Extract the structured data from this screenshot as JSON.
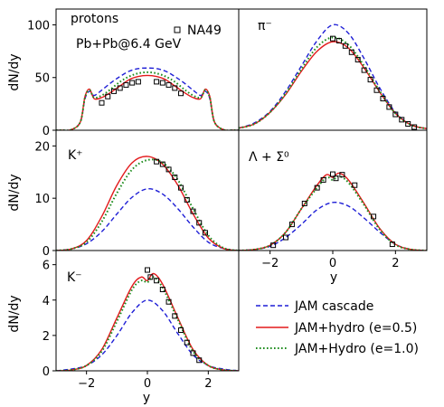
{
  "figure": {
    "legend": [
      {
        "series": "jam",
        "label": "JAM cascade"
      },
      {
        "series": "hydro05",
        "label": "JAM+hydro (e=0.5)"
      },
      {
        "series": "hydro10",
        "label": "JAM+Hydro (e=1.0)"
      }
    ],
    "series_styles": {
      "jam": {
        "color": "#1f1fd6",
        "dash": "5,3",
        "width": 1.4
      },
      "hydro05": {
        "color": "#e31a1c",
        "dash": "",
        "width": 1.4
      },
      "hydro10": {
        "color": "#1e8c1e",
        "dash": "1.6,2.4",
        "width": 2.0
      }
    },
    "marker_style": {
      "stroke": "#000000",
      "fill": "none"
    }
  },
  "chart_data": [
    {
      "type": "line",
      "panel": "protons",
      "label": "protons",
      "sublabel": "Pb+Pb@6.4 GeV",
      "data_label": "NA49",
      "xlabel": "",
      "ylabel": "dN/dy",
      "xlim": [
        -3,
        3
      ],
      "ylim": [
        0,
        115
      ],
      "yticks": [
        "0",
        "50",
        "100"
      ],
      "xticks": [],
      "series": [
        {
          "key": "jam",
          "x": [
            -3,
            -2.8,
            -2.5,
            -2.2,
            -2.05,
            -1.9,
            -1.75,
            -1.5,
            -1.2,
            -0.9,
            -0.6,
            -0.3,
            0,
            0.3,
            0.6,
            0.9,
            1.2,
            1.5,
            1.75,
            1.9,
            2.05,
            2.2,
            2.5,
            2.8,
            3
          ],
          "y": [
            0,
            0,
            0.5,
            8,
            30,
            37,
            33,
            38,
            45,
            51,
            56,
            58.5,
            59,
            58.5,
            56,
            51,
            45,
            38,
            33,
            37,
            30,
            8,
            0.5,
            0,
            0
          ]
        },
        {
          "key": "hydro05",
          "x": [
            -3,
            -2.8,
            -2.5,
            -2.2,
            -2.05,
            -1.9,
            -1.75,
            -1.5,
            -1.2,
            -0.9,
            -0.6,
            -0.3,
            0,
            0.3,
            0.6,
            0.9,
            1.2,
            1.5,
            1.75,
            1.9,
            2.05,
            2.2,
            2.5,
            2.8,
            3
          ],
          "y": [
            0,
            0,
            0.5,
            8,
            32,
            39,
            30,
            31,
            36,
            42,
            48,
            51,
            52,
            51,
            48,
            42,
            36,
            31,
            30,
            39,
            32,
            8,
            0.5,
            0,
            0
          ]
        },
        {
          "key": "hydro10",
          "x": [
            -3,
            -2.8,
            -2.5,
            -2.2,
            -2.05,
            -1.9,
            -1.75,
            -1.5,
            -1.2,
            -0.9,
            -0.6,
            -0.3,
            0,
            0.3,
            0.6,
            0.9,
            1.2,
            1.5,
            1.75,
            1.9,
            2.05,
            2.2,
            2.5,
            2.8,
            3
          ],
          "y": [
            0,
            0,
            0.5,
            8,
            31,
            38,
            31,
            33,
            39,
            46,
            51,
            54,
            55,
            54,
            51,
            46,
            39,
            33,
            31,
            38,
            31,
            8,
            0.5,
            0,
            0
          ]
        }
      ],
      "points": {
        "x": [
          -1.5,
          -1.3,
          -1.1,
          -0.9,
          -0.7,
          -0.5,
          -0.3,
          0.3,
          0.5,
          0.7,
          0.9,
          1.1
        ],
        "y": [
          26,
          32,
          37,
          40,
          43,
          45,
          46,
          46,
          45,
          43,
          40,
          35
        ]
      }
    },
    {
      "type": "line",
      "panel": "pi-minus",
      "label": "π⁻",
      "xlabel": "",
      "ylabel": "",
      "xlim": [
        -3,
        3
      ],
      "ylim": [
        0,
        115
      ],
      "yticks": [],
      "xticks": [],
      "series": [
        {
          "key": "jam",
          "x": [
            -3,
            -2.5,
            -2,
            -1.5,
            -1,
            -0.5,
            0,
            0.5,
            1,
            1.5,
            2,
            2.5,
            3
          ],
          "y": [
            2,
            7,
            18,
            37,
            61,
            85,
            100,
            92,
            68,
            40,
            17,
            5,
            1.5
          ]
        },
        {
          "key": "hydro05",
          "x": [
            -3,
            -2.5,
            -2,
            -1.5,
            -1,
            -0.5,
            0,
            0.5,
            1,
            1.5,
            2,
            2.5,
            3
          ],
          "y": [
            2,
            6,
            17,
            34,
            56,
            75,
            84,
            78,
            59,
            36,
            16,
            5,
            1.5
          ]
        },
        {
          "key": "hydro10",
          "x": [
            -3,
            -2.5,
            -2,
            -1.5,
            -1,
            -0.5,
            0,
            0.5,
            1,
            1.5,
            2,
            2.5,
            3
          ],
          "y": [
            2,
            6,
            17,
            35,
            58,
            79,
            88,
            81,
            61,
            37,
            16,
            5,
            1.5
          ]
        }
      ],
      "points": {
        "x": [
          0,
          0.2,
          0.4,
          0.6,
          0.8,
          1.0,
          1.2,
          1.4,
          1.6,
          1.8,
          2.0,
          2.2,
          2.4,
          2.6
        ],
        "y": [
          87,
          85,
          80,
          74,
          67,
          57,
          48,
          38,
          30,
          22,
          15,
          10,
          6,
          3
        ]
      }
    },
    {
      "type": "line",
      "panel": "k-plus",
      "label": "K⁺",
      "xlabel": "",
      "ylabel": "dN/dy",
      "xlim": [
        -3,
        3
      ],
      "ylim": [
        0,
        23
      ],
      "yticks": [
        "0",
        "10",
        "20"
      ],
      "xticks": [],
      "series": [
        {
          "key": "jam",
          "x": [
            -3,
            -2.5,
            -2,
            -1.5,
            -1,
            -0.5,
            0,
            0.5,
            1,
            1.5,
            2,
            2.5,
            3
          ],
          "y": [
            0,
            0.3,
            1.3,
            3.6,
            7,
            10.2,
            11.8,
            10.8,
            8,
            4.5,
            1.6,
            0.4,
            0
          ]
        },
        {
          "key": "hydro05",
          "x": [
            -3,
            -2.5,
            -2,
            -1.5,
            -1,
            -0.5,
            0,
            0.5,
            1,
            1.5,
            2,
            2.5,
            3
          ],
          "y": [
            0,
            0.3,
            1.9,
            6.5,
            12.5,
            16.8,
            18,
            16.5,
            12.5,
            7,
            2.4,
            0.4,
            0
          ]
        },
        {
          "key": "hydro10",
          "x": [
            -3,
            -2.5,
            -2,
            -1.5,
            -1,
            -0.5,
            0,
            0.5,
            1,
            1.5,
            2,
            2.5,
            3
          ],
          "y": [
            0,
            0.3,
            1.6,
            5.5,
            11,
            15.5,
            17.3,
            16.8,
            13.5,
            8,
            2.9,
            0.5,
            0
          ]
        }
      ],
      "points": {
        "x": [
          0.3,
          0.5,
          0.7,
          0.9,
          1.1,
          1.3,
          1.5,
          1.7,
          1.9
        ],
        "y": [
          17,
          16.5,
          15.5,
          14,
          12,
          9.7,
          7.5,
          5.3,
          3.4
        ]
      }
    },
    {
      "type": "line",
      "panel": "lambda-sigma",
      "label": "Λ + Σ⁰",
      "xlabel": "y",
      "ylabel": "",
      "xlim": [
        -3,
        3
      ],
      "ylim": [
        0,
        23
      ],
      "yticks": [],
      "xticks": [
        "−2",
        "0",
        "2"
      ],
      "series": [
        {
          "key": "jam",
          "x": [
            -3,
            -2.5,
            -2,
            -1.5,
            -1,
            -0.5,
            0,
            0.5,
            1,
            1.5,
            2,
            2.5,
            3
          ],
          "y": [
            0,
            0.2,
            0.8,
            2.5,
            5,
            7.8,
            9.2,
            8.5,
            6.2,
            3.5,
            1.2,
            0.2,
            0
          ]
        },
        {
          "key": "hydro05",
          "x": [
            -3,
            -2.5,
            -2,
            -1.5,
            -1,
            -0.5,
            -0.2,
            0,
            0.2,
            0.5,
            1,
            1.5,
            2,
            2.5,
            3
          ],
          "y": [
            0,
            0.2,
            1,
            3.5,
            8,
            12.5,
            14.5,
            14,
            14.8,
            13.5,
            9,
            4.2,
            1.2,
            0.2,
            0
          ]
        },
        {
          "key": "hydro10",
          "x": [
            -3,
            -2.5,
            -2,
            -1.5,
            -1,
            -0.5,
            -0.2,
            0,
            0.2,
            0.5,
            1,
            1.5,
            2,
            2.5,
            3
          ],
          "y": [
            0,
            0.2,
            1,
            3.5,
            8,
            12,
            14,
            13.5,
            14.2,
            13,
            8.7,
            4,
            1.1,
            0.2,
            0
          ]
        }
      ],
      "points": {
        "x": [
          -1.9,
          -1.5,
          -1.3,
          -0.9,
          -0.5,
          -0.3,
          0.0,
          0.1,
          0.3,
          0.7,
          1.3,
          1.9
        ],
        "y": [
          1,
          2.5,
          5,
          9,
          12,
          13.5,
          14.6,
          13.8,
          14.5,
          12.5,
          6.5,
          1.2
        ]
      }
    },
    {
      "type": "line",
      "panel": "k-minus",
      "label": "K⁻",
      "xlabel": "y",
      "ylabel": "dN/dy",
      "xlim": [
        -3,
        3
      ],
      "ylim": [
        0,
        6.8
      ],
      "yticks": [
        "0",
        "2",
        "4",
        "6"
      ],
      "xticks": [
        "−2",
        "0",
        "2"
      ],
      "series": [
        {
          "key": "jam",
          "x": [
            -3,
            -2.5,
            -2,
            -1.5,
            -1,
            -0.5,
            0,
            0.5,
            1,
            1.5,
            2,
            2.5,
            3
          ],
          "y": [
            0,
            0.1,
            0.3,
            0.9,
            2,
            3.3,
            4,
            3.4,
            2.1,
            0.9,
            0.3,
            0.1,
            0
          ]
        },
        {
          "key": "hydro05",
          "x": [
            -3,
            -2.5,
            -2,
            -1.5,
            -1,
            -0.5,
            -0.2,
            0,
            0.2,
            0.5,
            1,
            1.5,
            2,
            2.5,
            3
          ],
          "y": [
            0,
            0.05,
            0.3,
            1.2,
            3,
            4.8,
            5.3,
            5.1,
            5.5,
            4.9,
            3,
            1.2,
            0.3,
            0.05,
            0
          ]
        },
        {
          "key": "hydro10",
          "x": [
            -3,
            -2.5,
            -2,
            -1.5,
            -1,
            -0.5,
            -0.2,
            0,
            0.2,
            0.5,
            1,
            1.5,
            2,
            2.5,
            3
          ],
          "y": [
            0,
            0.05,
            0.3,
            1.1,
            2.8,
            4.6,
            5.1,
            5,
            5.3,
            4.7,
            2.9,
            1.1,
            0.3,
            0.05,
            0
          ]
        }
      ],
      "points": {
        "x": [
          0,
          0.1,
          0.3,
          0.5,
          0.7,
          0.9,
          1.1,
          1.3,
          1.5,
          1.7
        ],
        "y": [
          5.7,
          5.3,
          5.1,
          4.6,
          3.9,
          3.1,
          2.3,
          1.6,
          1.0,
          0.6
        ]
      }
    }
  ]
}
